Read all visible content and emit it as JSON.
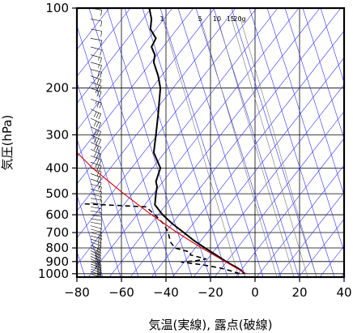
{
  "chart_data": {
    "type": "line",
    "xlabel": "気温(実線), 露点(破線)",
    "ylabel": "気圧(hPa)",
    "xlim": [
      -80,
      40
    ],
    "ylim": [
      1030,
      100
    ],
    "y_scale": "log",
    "x_ticks": [
      "−80",
      "−60",
      "−40",
      "−20",
      "0",
      "20",
      "40"
    ],
    "x_tick_values": [
      -80,
      -60,
      -40,
      -20,
      0,
      20,
      40
    ],
    "y_ticks": [
      "100",
      "200",
      "300",
      "400",
      "500",
      "600",
      "700",
      "800",
      "900",
      "1000"
    ],
    "y_tick_values": [
      100,
      200,
      300,
      400,
      500,
      600,
      700,
      800,
      900,
      1000
    ],
    "grid": true,
    "mixing_ratio_labels": [
      "1",
      "5",
      "10",
      "15",
      "20g"
    ],
    "colors": {
      "temperature": "#000000",
      "dewpoint": "#000000",
      "parcel": "#e00000",
      "adiabats": "#3030ff",
      "isobars": "#000000",
      "wind_barbs": "#000000"
    },
    "series": [
      {
        "style": "solid",
        "points": [
          [
            1000,
            -4.8
          ],
          [
            975,
            -6.0
          ],
          [
            950,
            -8.0
          ],
          [
            925,
            -10.5
          ],
          [
            900,
            -13.0
          ],
          [
            850,
            -17.5
          ],
          [
            800,
            -22.5
          ],
          [
            750,
            -27.5
          ],
          [
            700,
            -32.0
          ],
          [
            650,
            -37.0
          ],
          [
            600,
            -41.5
          ],
          [
            550,
            -45.0
          ],
          [
            500,
            -44.5
          ],
          [
            470,
            -44.0
          ],
          [
            450,
            -44.5
          ],
          [
            400,
            -42.5
          ],
          [
            350,
            -45.5
          ],
          [
            300,
            -44.5
          ],
          [
            250,
            -43.5
          ],
          [
            200,
            -42.5
          ],
          [
            180,
            -43.5
          ],
          [
            160,
            -45.5
          ],
          [
            150,
            -45.0
          ],
          [
            140,
            -46.5
          ],
          [
            130,
            -44.5
          ],
          [
            120,
            -47.0
          ],
          [
            110,
            -46.5
          ],
          [
            100,
            -47.5
          ]
        ]
      },
      {
        "style": "dashed",
        "points": [
          [
            1000,
            -7.0
          ],
          [
            975,
            -11.0
          ],
          [
            950,
            -16.0
          ],
          [
            925,
            -24.0
          ],
          [
            905,
            -33.0
          ],
          [
            895,
            -27.0
          ],
          [
            880,
            -22.0
          ],
          [
            850,
            -29.0
          ],
          [
            830,
            -29.0
          ],
          [
            800,
            -36.0
          ],
          [
            760,
            -38.0
          ],
          [
            700,
            -39.0
          ],
          [
            650,
            -41.0
          ],
          [
            600,
            -45.0
          ],
          [
            560,
            -49.0
          ],
          [
            545,
            -78.0
          ]
        ]
      },
      {
        "style": "solid",
        "points": [
          [
            1000,
            -4.0
          ],
          [
            900,
            -13.5
          ],
          [
            800,
            -24.0
          ],
          [
            700,
            -35.0
          ],
          [
            600,
            -46.5
          ],
          [
            500,
            -59.0
          ],
          [
            400,
            -73.0
          ],
          [
            300,
            -88.0
          ]
        ]
      }
    ],
    "wind_profile": [
      [
        1000,
        15,
        290
      ],
      [
        980,
        18,
        290
      ],
      [
        960,
        20,
        290
      ],
      [
        940,
        22,
        290
      ],
      [
        920,
        25,
        290
      ],
      [
        900,
        25,
        290
      ],
      [
        880,
        25,
        295
      ],
      [
        860,
        27,
        295
      ],
      [
        840,
        28,
        295
      ],
      [
        820,
        28,
        295
      ],
      [
        800,
        25,
        295
      ],
      [
        780,
        22,
        295
      ],
      [
        760,
        20,
        290
      ],
      [
        740,
        18,
        290
      ],
      [
        720,
        16,
        285
      ],
      [
        700,
        15,
        285
      ],
      [
        680,
        14,
        285
      ],
      [
        660,
        12,
        285
      ],
      [
        640,
        10,
        280
      ],
      [
        620,
        8,
        280
      ],
      [
        600,
        7,
        280
      ],
      [
        580,
        8,
        280
      ],
      [
        560,
        9,
        280
      ],
      [
        540,
        9,
        280
      ],
      [
        520,
        10,
        280
      ],
      [
        500,
        12,
        285
      ],
      [
        480,
        14,
        285
      ],
      [
        460,
        16,
        285
      ],
      [
        440,
        18,
        290
      ],
      [
        420,
        20,
        290
      ],
      [
        400,
        22,
        290
      ],
      [
        380,
        25,
        290
      ],
      [
        360,
        28,
        290
      ],
      [
        340,
        30,
        295
      ],
      [
        320,
        32,
        295
      ],
      [
        300,
        35,
        295
      ],
      [
        280,
        34,
        295
      ],
      [
        260,
        32,
        295
      ],
      [
        240,
        30,
        295
      ],
      [
        220,
        28,
        290
      ],
      [
        200,
        26,
        290
      ],
      [
        190,
        24,
        290
      ],
      [
        180,
        22,
        290
      ],
      [
        170,
        20,
        285
      ],
      [
        160,
        18,
        285
      ],
      [
        150,
        16,
        285
      ],
      [
        140,
        14,
        285
      ],
      [
        130,
        12,
        280
      ],
      [
        120,
        12,
        280
      ],
      [
        110,
        12,
        280
      ],
      [
        100,
        12,
        280
      ]
    ]
  }
}
